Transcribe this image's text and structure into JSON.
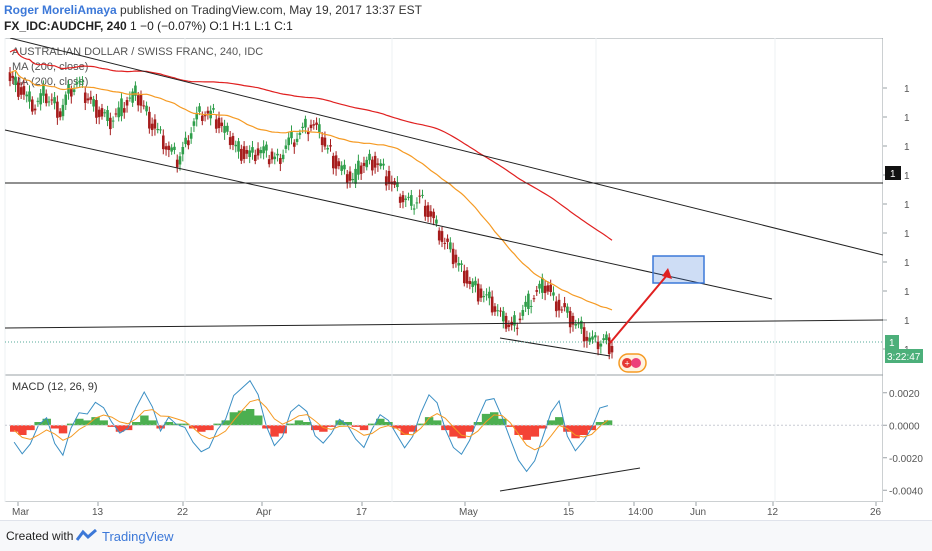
{
  "header": {
    "author": "Roger MoreliAmaya",
    "published": "published on TradingView.com, May 19, 2017 13:37 EST",
    "symbol": "FX_IDC:AUDCHF, 240",
    "ohlc": "1 −0 (−0.07%) O:1 H:1 L:1 C:1"
  },
  "footer": {
    "created_with": "Created with",
    "brand": "TradingView"
  },
  "chart_data": {
    "type": "candlestick",
    "title": "AUSTRALIAN DOLLAR / SWISS FRANC, 240, IDC",
    "indicators": [
      "MA (200, close)",
      "MA (200, close)"
    ],
    "price_axis_labels": [
      "1",
      "1",
      "1",
      "1",
      "1",
      "1",
      "1",
      "1",
      "1",
      "1"
    ],
    "last_price_label": "1",
    "current_price_label": "1",
    "countdown_label": "3:22:47",
    "x_tick_labels": [
      "Mar",
      "13",
      "22",
      "Apr",
      "17",
      "May",
      "15",
      "14:00",
      "Jun",
      "12",
      "26"
    ],
    "candles_close_trend": [
      0.8,
      0.75,
      0.68,
      0.63,
      0.7,
      0.66,
      0.6,
      0.72,
      0.78,
      0.7,
      0.64,
      0.58,
      0.55,
      0.6,
      0.66,
      0.7,
      0.62,
      0.52,
      0.44,
      0.36,
      0.3,
      0.4,
      0.55,
      0.6,
      0.58,
      0.52,
      0.45,
      0.38,
      0.34,
      0.33,
      0.36,
      0.32,
      0.3,
      0.4,
      0.44,
      0.48,
      0.52,
      0.46,
      0.36,
      0.28,
      0.22,
      0.18,
      0.26,
      0.3,
      0.28,
      0.2,
      0.12,
      0.06,
      0.02,
      0.06,
      -0.02,
      -0.12,
      -0.22,
      -0.3,
      -0.38,
      -0.46,
      -0.52,
      -0.56,
      -0.62,
      -0.7,
      -0.74,
      -0.66,
      -0.58,
      -0.52,
      -0.48,
      -0.56,
      -0.62,
      -0.68,
      -0.74,
      -0.8,
      -0.85,
      -0.82,
      -0.86
    ],
    "macd": {
      "label": "MACD (12, 26, 9)",
      "y_tick_labels": [
        "0.0020",
        "0.0000",
        "-0.0020",
        "-0.0040"
      ],
      "histogram": [
        -0.0004,
        -0.0006,
        -0.0003,
        0.0002,
        0.0004,
        -0.0002,
        -0.0005,
        0.0001,
        0.0004,
        0.0003,
        0.0005,
        0.0003,
        -0.0001,
        -0.0004,
        -0.0003,
        0.0002,
        0.0006,
        0.0003,
        -0.0002,
        0.0002,
        0.0001,
        0.0001,
        -0.0002,
        -0.0004,
        -0.0003,
        0.0001,
        0.0003,
        0.0008,
        0.0009,
        0.001,
        0.0006,
        -0.0002,
        -0.0007,
        -0.0005,
        0.0001,
        0.0003,
        0.0002,
        -0.0003,
        -0.0004,
        -0.0001,
        0.0003,
        0.0002,
        -0.0001,
        -0.0003,
        0.0001,
        0.0004,
        0.0002,
        -0.0002,
        -0.0006,
        -0.0004,
        0.0001,
        0.0005,
        0.0003,
        -0.0003,
        -0.0007,
        -0.0008,
        -0.0004,
        0.0002,
        0.0007,
        0.0008,
        0.0004,
        -0.0001,
        -0.0006,
        -0.0009,
        -0.0007,
        -0.0002,
        0.0003,
        0.0005,
        -0.0004,
        -0.0008,
        -0.0006,
        -0.0003,
        0.0002,
        0.0003
      ],
      "ylim": [
        -0.0046,
        0.0026
      ]
    }
  },
  "colors": {
    "up_candle": "#2e9e4a",
    "down_candle": "#a61c1c",
    "ma_orange": "#f59a23",
    "ma_red": "#e02020",
    "macd_pos": "#4caf50",
    "macd_neg": "#f44336",
    "target_box": "#3c78d8",
    "arrow": "#e02020",
    "author": "#3c78d8"
  }
}
